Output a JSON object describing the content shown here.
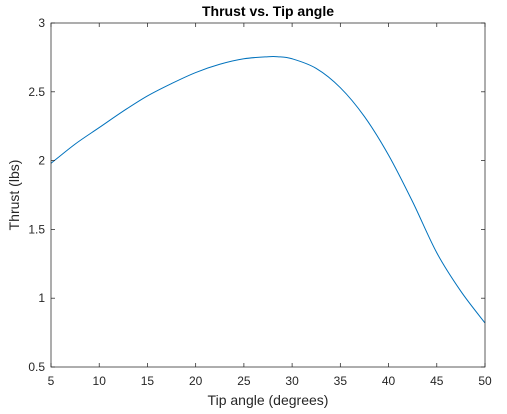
{
  "chart_data": {
    "type": "line",
    "title": "Thrust vs. Tip angle",
    "xlabel": "Tip angle (degrees)",
    "ylabel": "Thrust (lbs)",
    "xlim": [
      5,
      50
    ],
    "ylim": [
      0.5,
      3
    ],
    "xticks": [
      5,
      10,
      15,
      20,
      25,
      30,
      35,
      40,
      45,
      50
    ],
    "yticks": [
      0.5,
      1,
      1.5,
      2,
      2.5,
      3
    ],
    "xtick_labels": [
      "5",
      "10",
      "15",
      "20",
      "25",
      "30",
      "35",
      "40",
      "45",
      "50"
    ],
    "ytick_labels": [
      "0.5",
      "1",
      "1.5",
      "2",
      "2.5",
      "3"
    ],
    "grid": false,
    "box": true,
    "series": [
      {
        "color": "#0072bd",
        "x": [
          5,
          7.5,
          10,
          12.5,
          15,
          17.5,
          20,
          22.5,
          25,
          27.5,
          28.5,
          30,
          32.5,
          35,
          37.5,
          40,
          42.5,
          45,
          47.5,
          50
        ],
        "y": [
          1.98,
          2.12,
          2.24,
          2.36,
          2.47,
          2.56,
          2.64,
          2.7,
          2.74,
          2.755,
          2.755,
          2.74,
          2.67,
          2.53,
          2.32,
          2.04,
          1.7,
          1.33,
          1.05,
          0.82
        ]
      }
    ]
  }
}
